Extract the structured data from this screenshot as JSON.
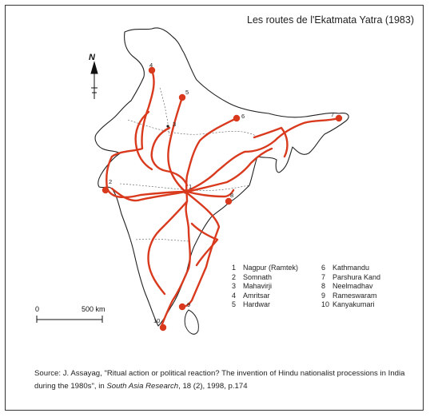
{
  "title": "Les routes de l'Ekatmata Yatra (1983)",
  "north_label": "N",
  "scale": {
    "zero": "0",
    "max": "500 km"
  },
  "legend": [
    {
      "num": "1",
      "name": "Nagpur (Ramtek)"
    },
    {
      "num": "6",
      "name": "Kathmandu"
    },
    {
      "num": "2",
      "name": "Somnath"
    },
    {
      "num": "7",
      "name": "Parshura Kand"
    },
    {
      "num": "3",
      "name": "Mahavirji"
    },
    {
      "num": "8",
      "name": "Neelmadhav"
    },
    {
      "num": "4",
      "name": "Amritsar"
    },
    {
      "num": "9",
      "name": "Rameswaram"
    },
    {
      "num": "5",
      "name": "Hardwar"
    },
    {
      "num": "10",
      "name": "Kanyakumari"
    }
  ],
  "source": {
    "prefix": "Source: J. Assayag, \"Ritual action or political reaction? The invention of Hindu nationalist processions in India during the 1980s\", in ",
    "journal": "South Asia Research",
    "suffix": ", 18 (2), 1998, p.174"
  },
  "place_numbers": [
    "1",
    "2",
    "3",
    "4",
    "5",
    "6",
    "7",
    "8",
    "9",
    "10"
  ],
  "colors": {
    "route": "#d93a1e",
    "outline": "#222222"
  }
}
